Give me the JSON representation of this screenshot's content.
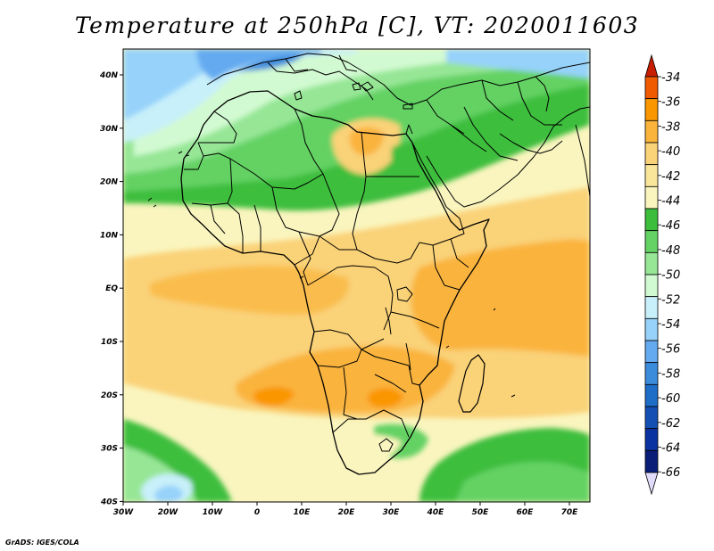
{
  "title": "Temperature at 250hPa [C], VT: 2020011603",
  "credit": "GrADS: IGES/COLA",
  "map": {
    "lat_labels": [
      "40N",
      "30N",
      "20N",
      "10N",
      "EQ",
      "10S",
      "20S",
      "30S",
      "40S"
    ],
    "lon_labels": [
      "30W",
      "20W",
      "10W",
      "0",
      "10E",
      "20E",
      "30E",
      "40E",
      "50E",
      "60E",
      "70E"
    ]
  },
  "colorbar": {
    "levels": [
      "-34",
      "-36",
      "-38",
      "-40",
      "-42",
      "-44",
      "-46",
      "-48",
      "-50",
      "-52",
      "-54",
      "-56",
      "-58",
      "-60",
      "-62",
      "-64",
      "-66"
    ],
    "colors": [
      "#c81e00",
      "#f05a00",
      "#fa9600",
      "#fab43c",
      "#fad278",
      "#fae69b",
      "#faf5be",
      "#3cbe3c",
      "#64d264",
      "#96e696",
      "#d2fad2",
      "#c8f0fa",
      "#96d2fa",
      "#64aaf0",
      "#3c8cdc",
      "#1e6ec8",
      "#1450b4",
      "#0a32a0",
      "#0a1e78",
      "#e1dcfa"
    ]
  }
}
